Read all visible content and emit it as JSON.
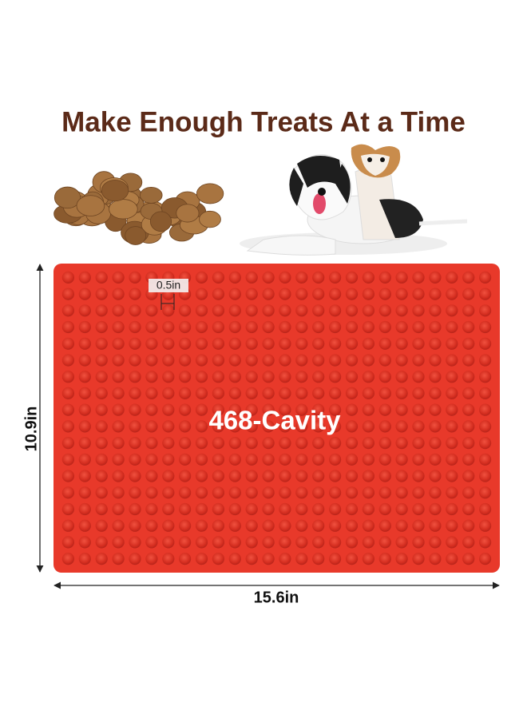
{
  "header": {
    "title": "Make Enough Treats At a Time"
  },
  "mat": {
    "cavity_size": "0.5in",
    "label": "468-Cavity",
    "height": "10.9in",
    "width": "15.6in"
  }
}
